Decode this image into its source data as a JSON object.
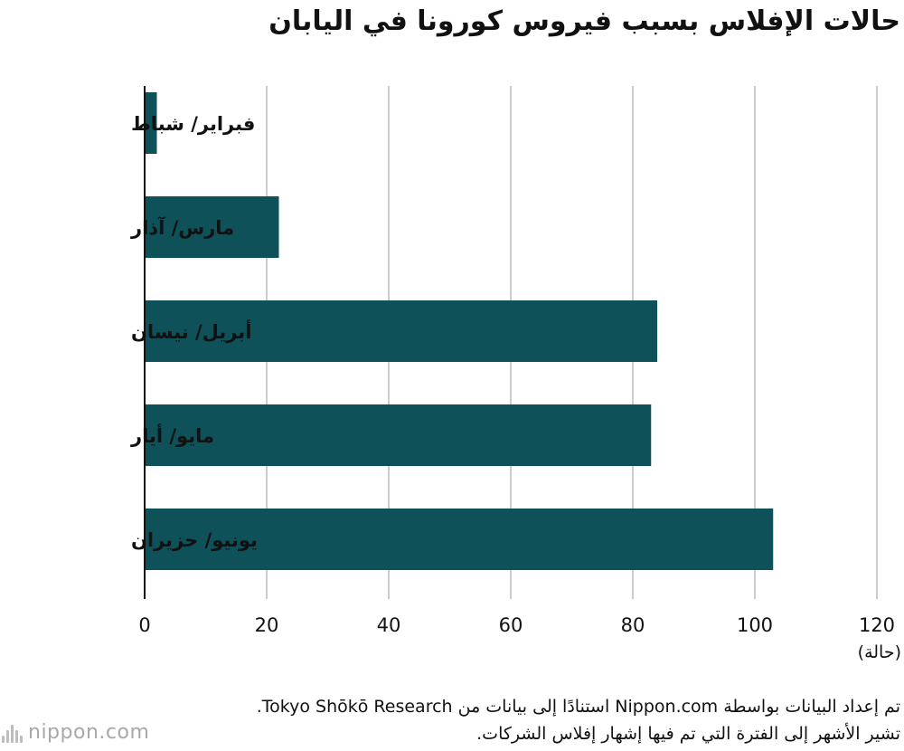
{
  "title": "حالات الإفلاس بسبب فيروس كورونا في اليابان",
  "chart_data": {
    "type": "bar",
    "orientation": "horizontal",
    "categories": [
      "فبراير/ شباط",
      "مارس/ آذار",
      "أبريل/ نيسان",
      "مايو/ أيار",
      "يونيو/ حزيران"
    ],
    "values": [
      2,
      22,
      84,
      83,
      103
    ],
    "xlim": [
      0,
      120
    ],
    "xticks": [
      "0",
      "20",
      "40",
      "60",
      "80",
      "100",
      "120"
    ],
    "xlabel": "(حالة)",
    "grid": true,
    "bar_color": "#0f5159"
  },
  "footer": {
    "line1": "تم إعداد البيانات بواسطة Nippon.com استنادًا إلى بيانات من Tokyo Shōkō Research.",
    "line2": "تشير الأشهر إلى الفترة التي تم فيها إشهار إفلاس الشركات."
  },
  "logo": {
    "text": "nippon.com",
    "icon": "nippon-logo-mark"
  }
}
